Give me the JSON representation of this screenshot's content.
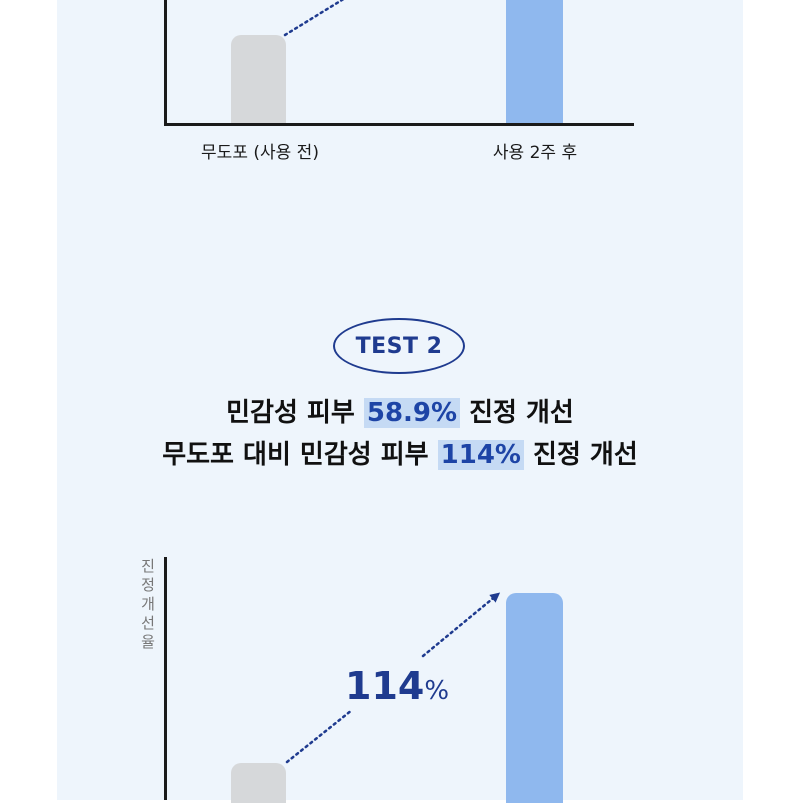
{
  "colors": {
    "background": "#eef5fc",
    "before_bar": "#d6d8da",
    "after_bar": "#8fb8ee",
    "accent": "#1f3b8f",
    "highlight_bg": "#c5daf4"
  },
  "test_badge": "TEST 2",
  "headline": {
    "line1_prefix": "민감성 피부 ",
    "line1_highlight": "58.9%",
    "line1_suffix": " 진정 개선",
    "line2_prefix": "무도포 대비 민감성 피부 ",
    "line2_highlight": "114%",
    "line2_suffix": " 진정 개선"
  },
  "chart_data": [
    {
      "type": "bar",
      "categories": [
        "무도포 (사용 전)",
        "사용 2주 후"
      ],
      "title": "",
      "xlabel": "",
      "ylabel": "",
      "note": "partially cropped at top of image"
    },
    {
      "type": "bar",
      "categories": [],
      "title": "",
      "xlabel": "",
      "ylabel": "진정개선율",
      "annotation": {
        "value": "114",
        "unit": "%"
      },
      "note": "partially cropped at bottom of image"
    }
  ]
}
